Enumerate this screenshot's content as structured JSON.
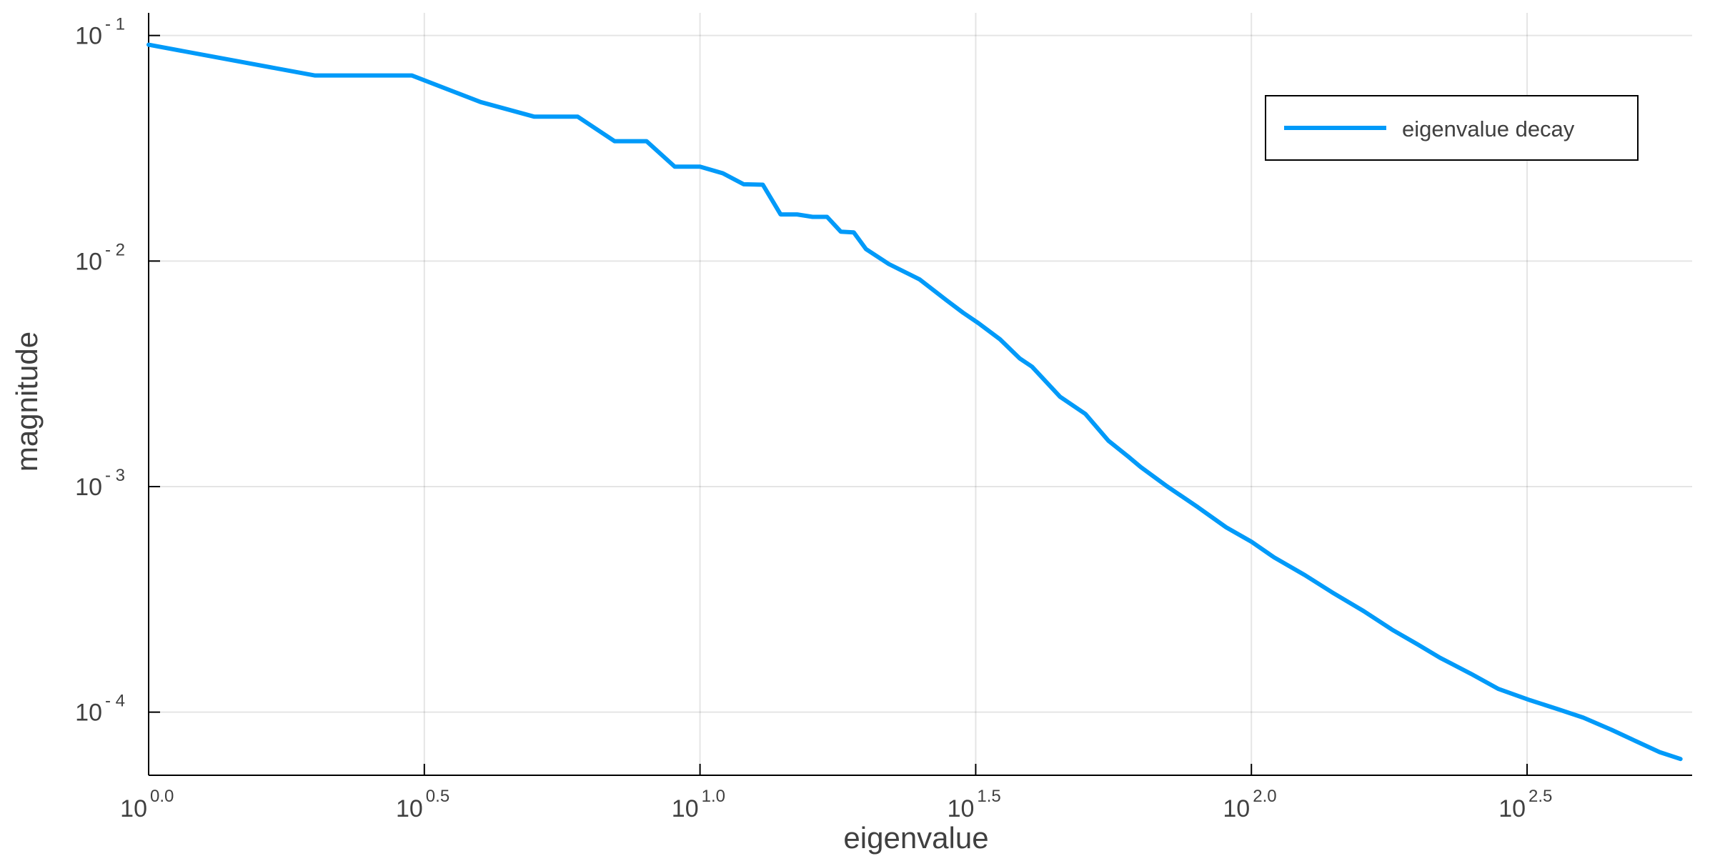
{
  "chart_data": {
    "type": "line",
    "title": "",
    "xlabel": "eigenvalue",
    "ylabel": "magnitude",
    "x_scale": "log10",
    "y_scale": "log10",
    "xlim": [
      1,
      630
    ],
    "ylim": [
      5.25e-05,
      0.126
    ],
    "x_ticks": [
      {
        "value": 1,
        "base": "10",
        "exp": "0.0"
      },
      {
        "value": 3.1623,
        "base": "10",
        "exp": "0.5"
      },
      {
        "value": 10,
        "base": "10",
        "exp": "1.0"
      },
      {
        "value": 31.623,
        "base": "10",
        "exp": "1.5"
      },
      {
        "value": 100,
        "base": "10",
        "exp": "2.0"
      },
      {
        "value": 316.23,
        "base": "10",
        "exp": "2.5"
      }
    ],
    "y_ticks": [
      {
        "value": 0.1,
        "base": "10",
        "exp": "- 1"
      },
      {
        "value": 0.01,
        "base": "10",
        "exp": "- 2"
      },
      {
        "value": 0.001,
        "base": "10",
        "exp": "- 3"
      },
      {
        "value": 0.0001,
        "base": "10",
        "exp": "- 4"
      }
    ],
    "grid": true,
    "legend": {
      "position": "top-right"
    },
    "series": [
      {
        "name": "eigenvalue decay",
        "color": "#009af9",
        "x": [
          1,
          2,
          3,
          4,
          5,
          6,
          7,
          8,
          9,
          10,
          11,
          12,
          13,
          14,
          15,
          16,
          17,
          18,
          19,
          20,
          22,
          25,
          28,
          30,
          32,
          35,
          38,
          40,
          45,
          50,
          55,
          60,
          63,
          70,
          80,
          90,
          100,
          110,
          125,
          140,
          160,
          180,
          200,
          220,
          250,
          280,
          320,
          360,
          400,
          450,
          500,
          550,
          600
        ],
        "y": [
          0.091,
          0.0665,
          0.0665,
          0.0507,
          0.0437,
          0.0437,
          0.034,
          0.034,
          0.0262,
          0.0262,
          0.0245,
          0.0219,
          0.0218,
          0.0161,
          0.0161,
          0.0157,
          0.0157,
          0.0135,
          0.0134,
          0.0113,
          0.0097,
          0.0083,
          0.0067,
          0.0059,
          0.0053,
          0.0045,
          0.0037,
          0.0034,
          0.0025,
          0.0021,
          0.0016,
          0.00135,
          0.00122,
          0.00101,
          0.00081,
          0.00066,
          0.00057,
          0.000485,
          0.000405,
          0.00034,
          0.00028,
          0.000232,
          0.0002,
          0.000174,
          0.000148,
          0.000127,
          0.000113,
          0.000103,
          9.45e-05,
          8.35e-05,
          7.4e-05,
          6.65e-05,
          6.2e-05
        ]
      }
    ]
  }
}
